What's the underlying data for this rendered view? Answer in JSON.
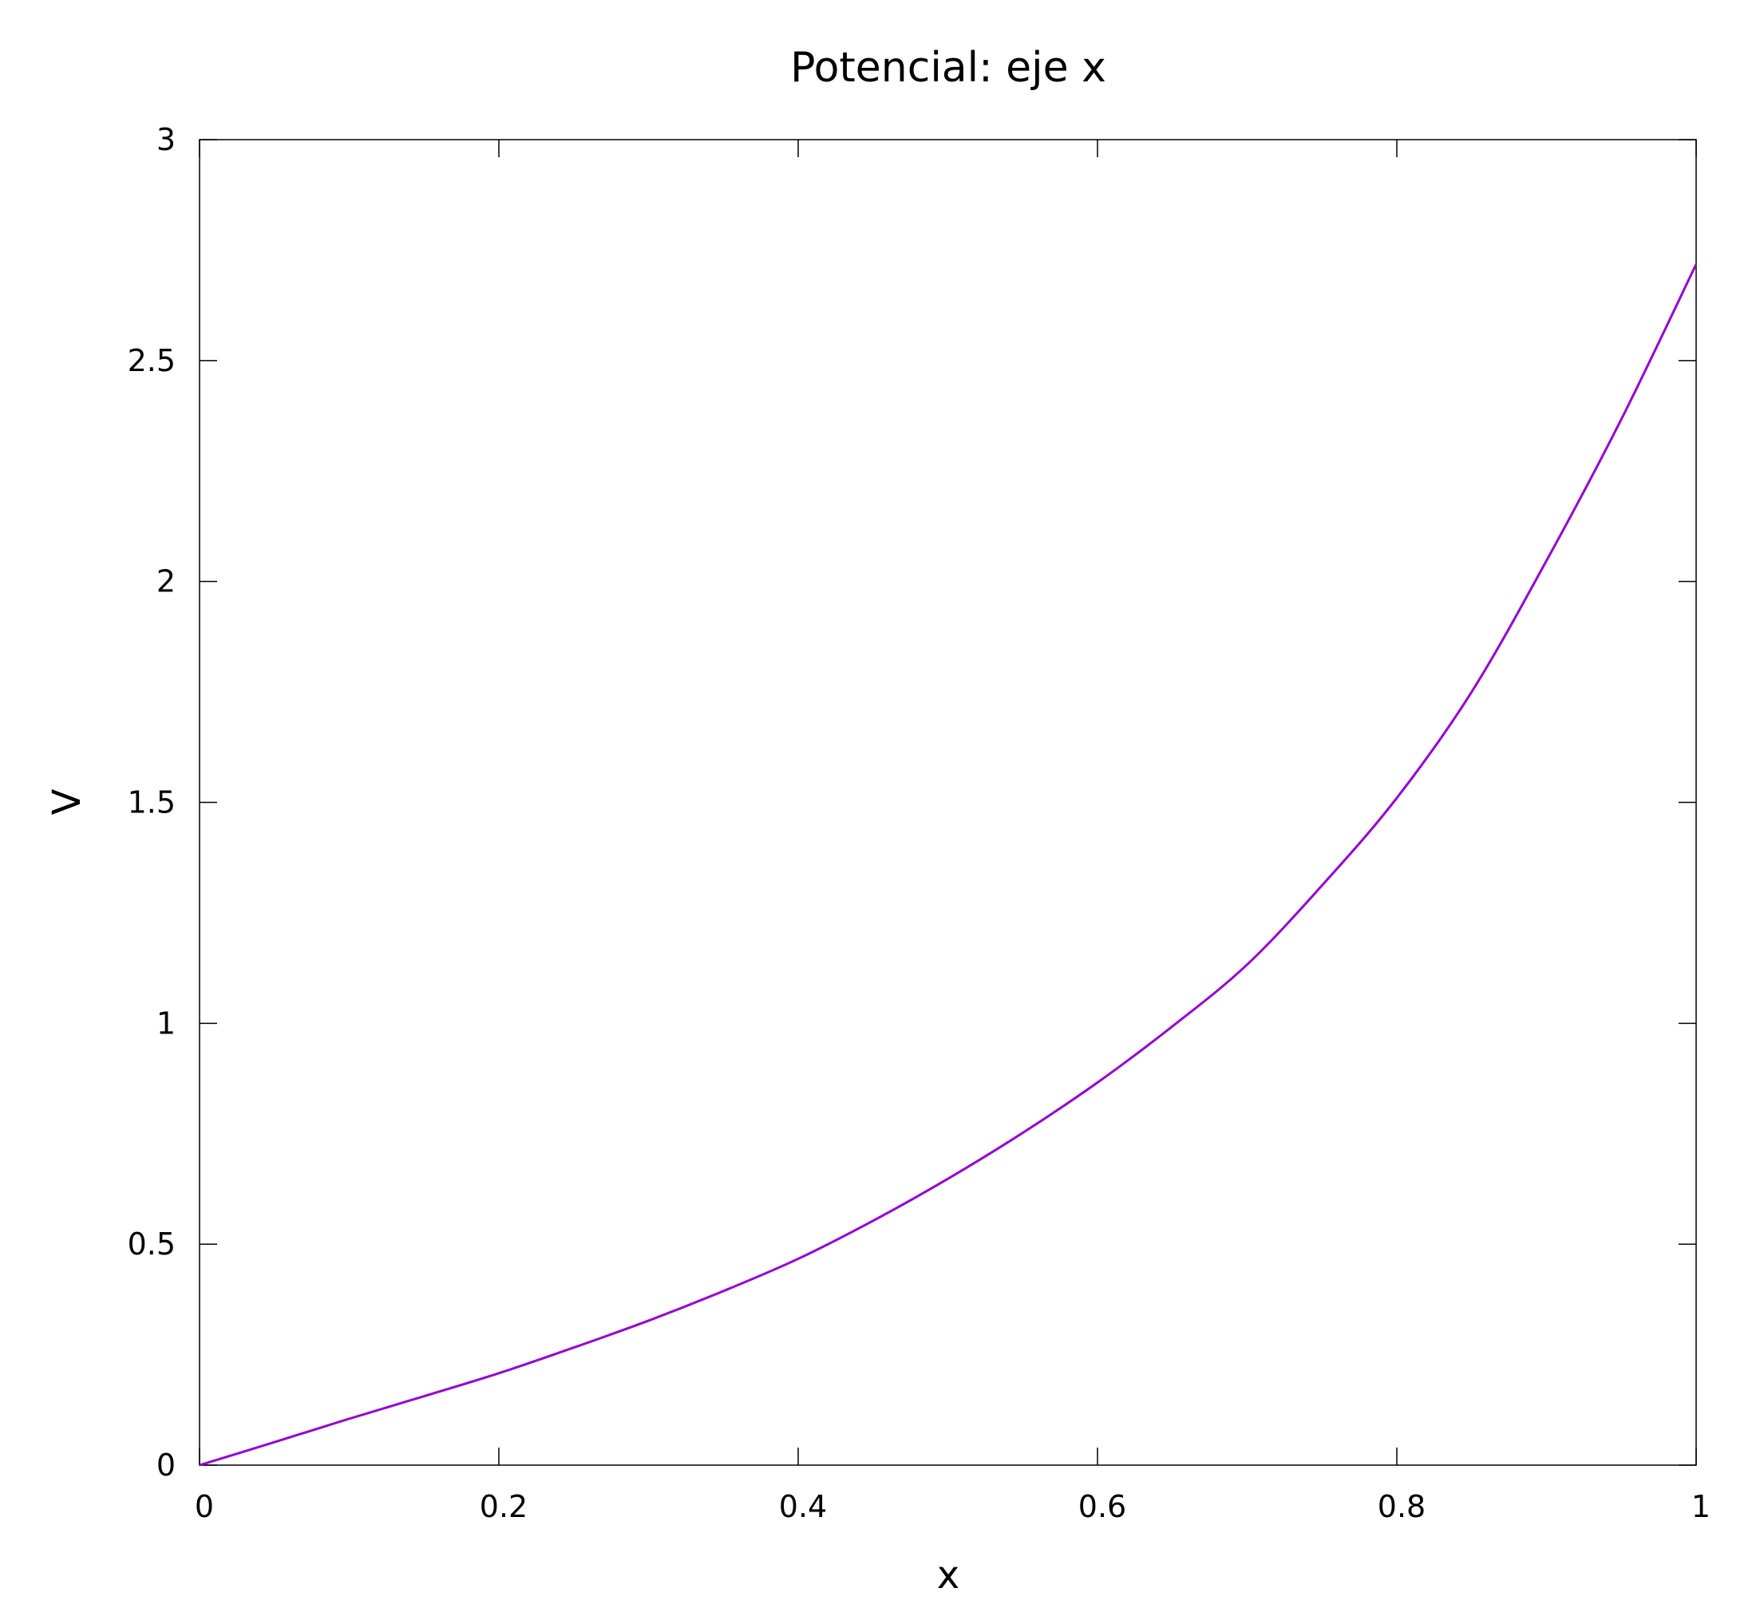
{
  "chart_data": {
    "type": "line",
    "title": "Potencial: eje x",
    "xlabel": "x",
    "ylabel": "V",
    "xlim": [
      0,
      1
    ],
    "ylim": [
      0,
      3
    ],
    "xticks": [
      "0",
      "0.2",
      "0.4",
      "0.6",
      "0.8",
      "1"
    ],
    "yticks": [
      "0",
      "0.5",
      "1",
      "1.5",
      "2",
      "2.5",
      "3"
    ],
    "grid": false,
    "legend": "none",
    "series": [
      {
        "color": "#9400d3",
        "x": [
          0,
          0.05,
          0.1,
          0.15,
          0.2,
          0.25,
          0.3,
          0.35,
          0.4,
          0.45,
          0.5,
          0.55,
          0.6,
          0.65,
          0.7,
          0.75,
          0.8,
          0.85,
          0.9,
          0.95,
          1.0
        ],
        "y": [
          0,
          0.052,
          0.105,
          0.156,
          0.208,
          0.266,
          0.327,
          0.394,
          0.467,
          0.553,
          0.648,
          0.752,
          0.866,
          0.993,
          1.133,
          1.312,
          1.51,
          1.75,
          2.047,
          2.367,
          2.718
        ]
      }
    ]
  }
}
